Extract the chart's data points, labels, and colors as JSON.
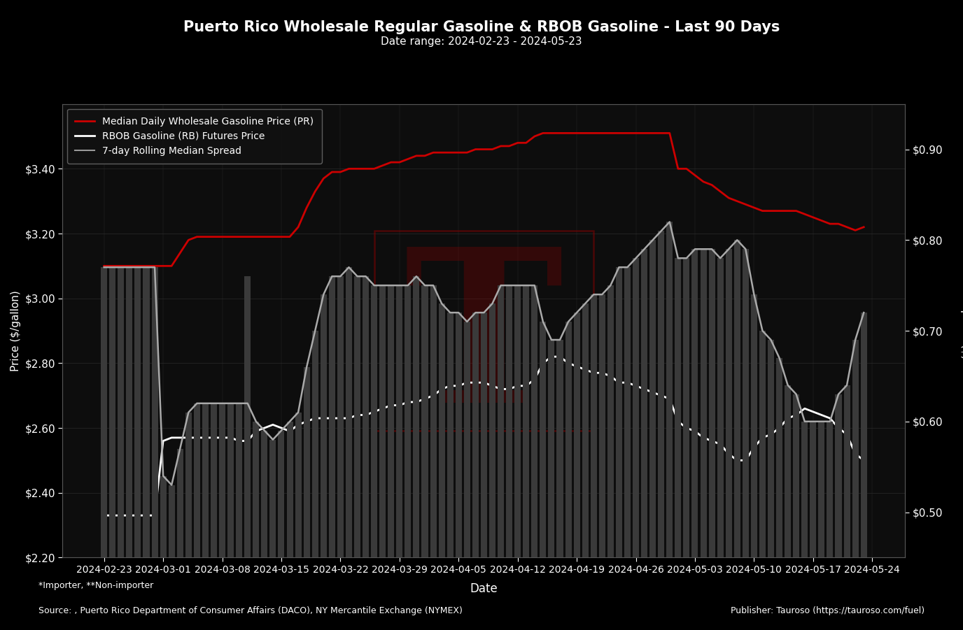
{
  "title": "Puerto Rico Wholesale Regular Gasoline & RBOB Gasoline - Last 90 Days",
  "subtitle": "Date range: 2024-02-23 - 2024-05-23",
  "xlabel": "Date",
  "ylabel_left": "Price ($/gallon)",
  "ylabel_right": "Spread ($)",
  "background_color": "#000000",
  "plot_bg_color": "#0d0d0d",
  "grid_color": "#2a2a2a",
  "text_color": "#ffffff",
  "footer_note": "*Importer, **Non-importer",
  "footer_source": "Source: , Puerto Rico Department of Consumer Affairs (DACO), NY Mercantile Exchange (NYMEX)",
  "footer_publisher": "Publisher: Tauroso (https://tauroso.com/fuel)",
  "legend_entries": [
    {
      "label": "Median Daily Wholesale Gasoline Price (PR)",
      "color": "#cc0000",
      "lw": 2
    },
    {
      "label": "RBOB Gasoline (RB) Futures Price",
      "color": "#ffffff",
      "lw": 2
    },
    {
      "label": "7-day Rolling Median Spread",
      "color": "#999999",
      "lw": 1.5
    }
  ],
  "dates": [
    "2024-02-23",
    "2024-02-24",
    "2024-02-25",
    "2024-02-26",
    "2024-02-27",
    "2024-02-28",
    "2024-02-29",
    "2024-03-01",
    "2024-03-02",
    "2024-03-03",
    "2024-03-04",
    "2024-03-05",
    "2024-03-06",
    "2024-03-07",
    "2024-03-08",
    "2024-03-09",
    "2024-03-10",
    "2024-03-11",
    "2024-03-12",
    "2024-03-13",
    "2024-03-14",
    "2024-03-15",
    "2024-03-16",
    "2024-03-17",
    "2024-03-18",
    "2024-03-19",
    "2024-03-20",
    "2024-03-21",
    "2024-03-22",
    "2024-03-23",
    "2024-03-24",
    "2024-03-25",
    "2024-03-26",
    "2024-03-27",
    "2024-03-28",
    "2024-03-29",
    "2024-03-30",
    "2024-03-31",
    "2024-04-01",
    "2024-04-02",
    "2024-04-03",
    "2024-04-04",
    "2024-04-05",
    "2024-04-06",
    "2024-04-07",
    "2024-04-08",
    "2024-04-09",
    "2024-04-10",
    "2024-04-11",
    "2024-04-12",
    "2024-04-13",
    "2024-04-14",
    "2024-04-15",
    "2024-04-16",
    "2024-04-17",
    "2024-04-18",
    "2024-04-19",
    "2024-04-20",
    "2024-04-21",
    "2024-04-22",
    "2024-04-23",
    "2024-04-24",
    "2024-04-25",
    "2024-04-26",
    "2024-04-27",
    "2024-04-28",
    "2024-04-29",
    "2024-04-30",
    "2024-05-01",
    "2024-05-02",
    "2024-05-03",
    "2024-05-04",
    "2024-05-05",
    "2024-05-06",
    "2024-05-07",
    "2024-05-08",
    "2024-05-09",
    "2024-05-10",
    "2024-05-11",
    "2024-05-12",
    "2024-05-13",
    "2024-05-14",
    "2024-05-15",
    "2024-05-16",
    "2024-05-17",
    "2024-05-18",
    "2024-05-19",
    "2024-05-20",
    "2024-05-21",
    "2024-05-22",
    "2024-05-23"
  ],
  "wholesale_price": [
    3.1,
    3.1,
    3.1,
    3.1,
    3.1,
    3.1,
    3.1,
    3.1,
    3.1,
    3.14,
    3.18,
    3.19,
    3.19,
    3.19,
    3.19,
    3.19,
    3.19,
    3.19,
    3.19,
    3.19,
    3.19,
    3.19,
    3.19,
    3.22,
    3.28,
    3.33,
    3.37,
    3.39,
    3.39,
    3.4,
    3.4,
    3.4,
    3.4,
    3.41,
    3.42,
    3.42,
    3.43,
    3.44,
    3.44,
    3.45,
    3.45,
    3.45,
    3.45,
    3.45,
    3.46,
    3.46,
    3.46,
    3.47,
    3.47,
    3.48,
    3.48,
    3.5,
    3.51,
    3.51,
    3.51,
    3.51,
    3.51,
    3.51,
    3.51,
    3.51,
    3.51,
    3.51,
    3.51,
    3.51,
    3.51,
    3.51,
    3.51,
    3.51,
    3.4,
    3.4,
    3.38,
    3.36,
    3.35,
    3.33,
    3.31,
    3.3,
    3.29,
    3.28,
    3.27,
    3.27,
    3.27,
    3.27,
    3.27,
    3.26,
    3.25,
    3.24,
    3.23,
    3.23,
    3.22,
    3.21,
    3.22
  ],
  "rbob_price": [
    2.33,
    2.33,
    2.33,
    2.33,
    2.33,
    2.33,
    2.33,
    2.56,
    2.57,
    2.57,
    2.57,
    2.57,
    2.57,
    2.57,
    2.57,
    2.57,
    2.56,
    2.56,
    2.59,
    2.6,
    2.61,
    2.6,
    2.59,
    2.61,
    2.62,
    2.63,
    2.63,
    2.63,
    2.63,
    2.63,
    2.64,
    2.64,
    2.65,
    2.66,
    2.67,
    2.67,
    2.68,
    2.68,
    2.69,
    2.7,
    2.72,
    2.73,
    2.73,
    2.74,
    2.74,
    2.74,
    2.73,
    2.72,
    2.72,
    2.73,
    2.73,
    2.75,
    2.8,
    2.82,
    2.82,
    2.8,
    2.79,
    2.78,
    2.77,
    2.77,
    2.76,
    2.74,
    2.74,
    2.73,
    2.72,
    2.71,
    2.7,
    2.69,
    2.62,
    2.6,
    2.59,
    2.57,
    2.56,
    2.55,
    2.52,
    2.5,
    2.5,
    2.54,
    2.57,
    2.58,
    2.6,
    2.63,
    2.64,
    2.66,
    2.65,
    2.64,
    2.63,
    2.6,
    2.58,
    2.52,
    2.5
  ],
  "spread_rolling": [
    0.77,
    0.77,
    0.77,
    0.77,
    0.77,
    0.77,
    0.77,
    0.54,
    0.53,
    0.57,
    0.61,
    0.62,
    0.62,
    0.62,
    0.62,
    0.62,
    0.62,
    0.62,
    0.6,
    0.59,
    0.58,
    0.59,
    0.6,
    0.61,
    0.66,
    0.7,
    0.74,
    0.76,
    0.76,
    0.77,
    0.76,
    0.76,
    0.75,
    0.75,
    0.75,
    0.75,
    0.75,
    0.76,
    0.75,
    0.75,
    0.73,
    0.72,
    0.72,
    0.71,
    0.72,
    0.72,
    0.73,
    0.75,
    0.75,
    0.75,
    0.75,
    0.75,
    0.71,
    0.69,
    0.69,
    0.71,
    0.72,
    0.73,
    0.74,
    0.74,
    0.75,
    0.77,
    0.77,
    0.78,
    0.79,
    0.8,
    0.81,
    0.82,
    0.78,
    0.78,
    0.79,
    0.79,
    0.79,
    0.78,
    0.79,
    0.8,
    0.79,
    0.74,
    0.7,
    0.69,
    0.67,
    0.64,
    0.63,
    0.6,
    0.6,
    0.6,
    0.6,
    0.63,
    0.64,
    0.69,
    0.72
  ],
  "bar_spread": [
    0.77,
    0.77,
    0.77,
    0.77,
    0.77,
    0.77,
    0.77,
    0.54,
    0.53,
    0.57,
    0.61,
    0.62,
    0.62,
    0.62,
    0.62,
    0.62,
    0.62,
    0.76,
    0.6,
    0.59,
    0.58,
    0.59,
    0.6,
    0.61,
    0.66,
    0.7,
    0.74,
    0.76,
    0.76,
    0.77,
    0.76,
    0.76,
    0.75,
    0.75,
    0.75,
    0.75,
    0.75,
    0.76,
    0.75,
    0.75,
    0.73,
    0.72,
    0.72,
    0.71,
    0.72,
    0.72,
    0.73,
    0.75,
    0.75,
    0.75,
    0.75,
    0.75,
    0.71,
    0.69,
    0.69,
    0.71,
    0.72,
    0.73,
    0.74,
    0.74,
    0.75,
    0.77,
    0.77,
    0.78,
    0.79,
    0.8,
    0.81,
    0.82,
    0.78,
    0.78,
    0.79,
    0.79,
    0.79,
    0.78,
    0.79,
    0.8,
    0.79,
    0.74,
    0.7,
    0.69,
    0.67,
    0.64,
    0.63,
    0.6,
    0.6,
    0.6,
    0.6,
    0.63,
    0.64,
    0.69,
    0.72
  ],
  "ylim_left": [
    2.2,
    3.6
  ],
  "ylim_right": [
    0.45,
    0.95
  ],
  "yticks_left": [
    2.2,
    2.4,
    2.6,
    2.8,
    3.0,
    3.2,
    3.4
  ],
  "yticks_right": [
    0.5,
    0.6,
    0.7,
    0.8,
    0.9
  ],
  "watermark_text": "T",
  "watermark_color": "#8b0000",
  "watermark_alpha": 0.3,
  "watermark_rect_color": "#8b0000",
  "bar_color": "#3a3a3a",
  "bar_alpha": 1.0
}
